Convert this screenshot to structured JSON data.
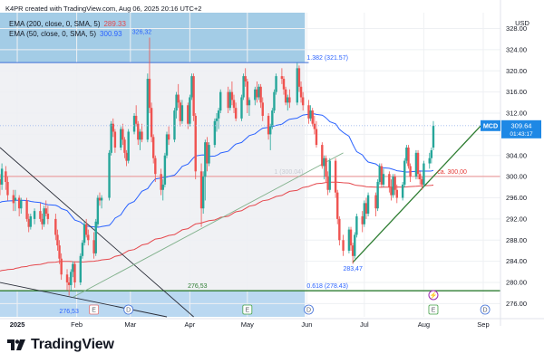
{
  "header": {
    "text": "K4PR created with TradingView.com, Aug 06, 2025 20:16 UTC+2"
  },
  "legend": [
    {
      "label": "EMA (200, close, 0, SMA, 5)",
      "value": "289.33",
      "color": "#e5484d"
    },
    {
      "label": "EMA (50, close, 0, SMA, 5)",
      "value": "300.93",
      "color": "#2962ff"
    }
  ],
  "currency": "USD",
  "brand": "TradingView",
  "price_tag": {
    "symbol": "MCD",
    "price": "309.64",
    "countdown": "01:43:17"
  },
  "colors": {
    "up": "#26a69a",
    "down": "#ef5350",
    "ema200": "#e5484d",
    "ema50": "#2962ff",
    "trend": "#2e7d32",
    "zone": "#5aa4d9",
    "price_tag": "#1e88e5"
  },
  "annotations": {
    "high_label": "326,32",
    "low_label_left": "276,53",
    "low_label_right": "283,47",
    "mid_label": "276,53",
    "fib_1382": "1.382 (321.57)",
    "fib_1": "1 (300.04)",
    "fib_0618": "0.618 (278.43)",
    "target_label": "ca. 300,00"
  },
  "event_markers": [
    {
      "kind": "earnings",
      "text": "E",
      "date": "2025-02-10"
    },
    {
      "kind": "dividend",
      "text": "D",
      "date": "2025-02-28"
    },
    {
      "kind": "earnings",
      "text": "E",
      "date": "2025-05-01"
    },
    {
      "kind": "dividend",
      "text": "D",
      "date": "2025-06-02"
    },
    {
      "kind": "earnings",
      "text": "E",
      "date": "2025-08-06"
    },
    {
      "kind": "dividend",
      "text": "D",
      "date": "2025-09-02"
    }
  ],
  "chart_data": {
    "type": "candlestick",
    "x_tick_labels": [
      "2025",
      "Feb",
      "Mar",
      "Apr",
      "May",
      "Jun",
      "Jul",
      "Aug",
      "Sep"
    ],
    "x_tick_dates": [
      "2025-01-01",
      "2025-02-01",
      "2025-03-01",
      "2025-04-01",
      "2025-05-01",
      "2025-06-01",
      "2025-07-01",
      "2025-08-01",
      "2025-09-01"
    ],
    "y_ticks": [
      "276.00",
      "280.00",
      "284.00",
      "288.00",
      "292.00",
      "296.00",
      "300.00",
      "304.00",
      "308.00",
      "312.00",
      "316.00",
      "320.00",
      "324.00",
      "328.00"
    ],
    "ylim": [
      273.5,
      331
    ],
    "current_price": 309.64,
    "horizontal_levels": [
      {
        "name": "fib 1.382",
        "value": 321.57
      },
      {
        "name": "fib 1",
        "value": 300.04
      },
      {
        "name": "ca. 300",
        "value": 300.0
      },
      {
        "name": "fib 0.618",
        "value": 278.43
      }
    ],
    "ohlc": [
      [
        "2024-12-23",
        299.5,
        300.5,
        296.5,
        298.5
      ],
      [
        "2024-12-24",
        298.5,
        302.5,
        297.5,
        301.5
      ],
      [
        "2024-12-26",
        301.0,
        302.0,
        297.5,
        299.0
      ],
      [
        "2024-12-27",
        299.0,
        300.0,
        295.5,
        296.5
      ],
      [
        "2024-12-30",
        296.5,
        297.5,
        293.5,
        295.0
      ],
      [
        "2024-12-31",
        295.5,
        297.5,
        293.5,
        296.0
      ],
      [
        "2025-01-02",
        296.0,
        296.5,
        292.5,
        294.0
      ],
      [
        "2025-01-03",
        294.0,
        296.0,
        293.0,
        295.5
      ],
      [
        "2025-01-06",
        295.5,
        296.0,
        291.5,
        292.0
      ],
      [
        "2025-01-07",
        292.0,
        293.0,
        289.5,
        290.5
      ],
      [
        "2025-01-08",
        290.5,
        293.0,
        290.0,
        292.5
      ],
      [
        "2025-01-10",
        292.0,
        294.0,
        291.0,
        293.5
      ],
      [
        "2025-01-13",
        293.5,
        295.0,
        291.5,
        292.0
      ],
      [
        "2025-01-14",
        292.0,
        293.0,
        290.0,
        291.0
      ],
      [
        "2025-01-15",
        291.0,
        294.5,
        290.5,
        294.0
      ],
      [
        "2025-01-16",
        294.0,
        295.5,
        292.5,
        293.0
      ],
      [
        "2025-01-17",
        293.0,
        294.5,
        291.0,
        292.0
      ],
      [
        "2025-01-21",
        292.0,
        293.0,
        288.0,
        289.0
      ],
      [
        "2025-01-22",
        289.0,
        290.0,
        286.0,
        287.0
      ],
      [
        "2025-01-23",
        287.0,
        288.0,
        283.5,
        284.5
      ],
      [
        "2025-01-24",
        284.5,
        285.5,
        280.5,
        281.5
      ],
      [
        "2025-01-27",
        281.5,
        282.5,
        278.5,
        280.0
      ],
      [
        "2025-01-28",
        280.0,
        281.0,
        277.5,
        279.5
      ],
      [
        "2025-01-29",
        279.5,
        282.5,
        278.5,
        282.0
      ],
      [
        "2025-01-30",
        282.0,
        284.0,
        281.0,
        283.5
      ],
      [
        "2025-01-31",
        283.5,
        284.0,
        279.0,
        280.0
      ],
      [
        "2025-02-03",
        280.0,
        285.5,
        279.5,
        285.0
      ],
      [
        "2025-02-04",
        285.0,
        288.0,
        284.5,
        287.5
      ],
      [
        "2025-02-05",
        287.5,
        291.5,
        287.0,
        291.0
      ],
      [
        "2025-02-06",
        291.0,
        292.0,
        288.5,
        289.0
      ],
      [
        "2025-02-07",
        289.0,
        290.0,
        287.0,
        288.0
      ],
      [
        "2025-02-10",
        288.0,
        289.5,
        284.5,
        285.5
      ],
      [
        "2025-02-11",
        285.5,
        292.0,
        285.0,
        291.5
      ],
      [
        "2025-02-12",
        291.0,
        296.5,
        290.5,
        296.0
      ],
      [
        "2025-02-13",
        296.0,
        297.0,
        294.5,
        295.5
      ],
      [
        "2025-02-14",
        295.5,
        296.5,
        294.0,
        296.0
      ],
      [
        "2025-02-18",
        296.0,
        305.0,
        295.5,
        304.5
      ],
      [
        "2025-02-19",
        304.5,
        310.5,
        304.0,
        310.0
      ],
      [
        "2025-02-20",
        310.0,
        311.0,
        307.5,
        308.5
      ],
      [
        "2025-02-21",
        308.5,
        309.0,
        304.5,
        305.5
      ],
      [
        "2025-02-24",
        305.5,
        309.5,
        305.0,
        309.0
      ],
      [
        "2025-02-25",
        309.0,
        310.0,
        306.0,
        307.0
      ],
      [
        "2025-02-26",
        307.0,
        307.5,
        303.5,
        304.5
      ],
      [
        "2025-02-27",
        304.5,
        305.0,
        302.0,
        303.0
      ],
      [
        "2025-02-28",
        303.0,
        309.0,
        302.5,
        308.5
      ],
      [
        "2025-03-03",
        308.5,
        312.0,
        308.0,
        311.5
      ],
      [
        "2025-03-04",
        311.5,
        313.5,
        309.5,
        310.0
      ],
      [
        "2025-03-05",
        310.0,
        310.5,
        306.0,
        307.0
      ],
      [
        "2025-03-06",
        307.0,
        309.0,
        305.0,
        308.5
      ],
      [
        "2025-03-07",
        308.5,
        310.0,
        306.5,
        307.0
      ],
      [
        "2025-03-10",
        307.0,
        319.5,
        306.5,
        318.5
      ],
      [
        "2025-03-11",
        318.5,
        326.3,
        312.0,
        313.0
      ],
      [
        "2025-03-12",
        313.0,
        314.0,
        306.5,
        307.5
      ],
      [
        "2025-03-13",
        307.5,
        308.0,
        302.5,
        303.5
      ],
      [
        "2025-03-14",
        303.5,
        304.0,
        299.0,
        300.5
      ],
      [
        "2025-03-17",
        300.5,
        301.5,
        296.5,
        297.5
      ],
      [
        "2025-03-18",
        297.5,
        299.5,
        295.5,
        298.5
      ],
      [
        "2025-03-19",
        298.5,
        304.5,
        298.0,
        304.0
      ],
      [
        "2025-03-20",
        304.0,
        308.5,
        303.5,
        308.0
      ],
      [
        "2025-03-21",
        308.0,
        309.5,
        306.0,
        307.0
      ],
      [
        "2025-03-24",
        307.0,
        313.0,
        306.5,
        312.5
      ],
      [
        "2025-03-25",
        312.5,
        316.0,
        311.0,
        315.5
      ],
      [
        "2025-03-26",
        315.5,
        317.5,
        313.0,
        314.0
      ],
      [
        "2025-03-27",
        314.0,
        314.5,
        309.5,
        310.5
      ],
      [
        "2025-03-28",
        310.5,
        314.5,
        310.0,
        313.5
      ],
      [
        "2025-03-31",
        313.5,
        314.0,
        309.0,
        310.0
      ],
      [
        "2025-04-01",
        310.0,
        315.5,
        309.5,
        315.0
      ],
      [
        "2025-04-02",
        315.0,
        319.5,
        314.5,
        319.0
      ],
      [
        "2025-04-03",
        319.0,
        319.5,
        310.5,
        311.5
      ],
      [
        "2025-04-04",
        311.5,
        312.0,
        299.5,
        301.0
      ],
      [
        "2025-04-07",
        301.0,
        302.5,
        290.5,
        294.0
      ],
      [
        "2025-04-08",
        294.0,
        301.0,
        293.0,
        300.0
      ],
      [
        "2025-04-09",
        300.0,
        307.0,
        295.5,
        306.5
      ],
      [
        "2025-04-10",
        306.5,
        307.5,
        301.0,
        302.5
      ],
      [
        "2025-04-11",
        302.5,
        306.5,
        302.0,
        306.0
      ],
      [
        "2025-04-14",
        306.0,
        311.0,
        305.5,
        310.5
      ],
      [
        "2025-04-15",
        310.5,
        312.0,
        308.5,
        311.0
      ],
      [
        "2025-04-16",
        311.0,
        313.0,
        309.0,
        312.5
      ],
      [
        "2025-04-17",
        312.5,
        316.5,
        312.0,
        316.0
      ],
      [
        "2025-04-21",
        316.0,
        317.0,
        312.0,
        313.0
      ],
      [
        "2025-04-22",
        313.0,
        316.5,
        312.5,
        316.0
      ],
      [
        "2025-04-23",
        316.0,
        318.0,
        313.5,
        314.5
      ],
      [
        "2025-04-24",
        314.5,
        315.5,
        312.0,
        313.0
      ],
      [
        "2025-04-25",
        313.0,
        314.0,
        310.5,
        311.0
      ],
      [
        "2025-04-28",
        311.0,
        315.5,
        310.5,
        315.0
      ],
      [
        "2025-04-29",
        315.0,
        319.5,
        314.5,
        319.0
      ],
      [
        "2025-04-30",
        319.0,
        320.5,
        317.0,
        318.0
      ],
      [
        "2025-05-01",
        318.0,
        318.5,
        312.0,
        313.5
      ],
      [
        "2025-05-02",
        313.5,
        315.0,
        311.5,
        314.5
      ],
      [
        "2025-05-05",
        314.5,
        317.0,
        313.5,
        316.5
      ],
      [
        "2025-05-06",
        316.5,
        318.0,
        314.0,
        315.0
      ],
      [
        "2025-05-07",
        315.0,
        317.5,
        314.5,
        317.0
      ],
      [
        "2025-05-08",
        317.0,
        317.5,
        313.0,
        314.0
      ],
      [
        "2025-05-09",
        314.0,
        315.0,
        310.5,
        311.5
      ],
      [
        "2025-05-12",
        311.5,
        312.0,
        307.0,
        308.0
      ],
      [
        "2025-05-13",
        308.0,
        310.0,
        305.0,
        309.5
      ],
      [
        "2025-05-14",
        309.5,
        313.0,
        309.0,
        312.5
      ],
      [
        "2025-05-15",
        312.5,
        316.5,
        312.0,
        316.0
      ],
      [
        "2025-05-16",
        316.0,
        319.5,
        315.5,
        319.0
      ],
      [
        "2025-05-19",
        319.0,
        320.5,
        317.5,
        318.5
      ],
      [
        "2025-05-20",
        318.5,
        319.0,
        315.5,
        316.5
      ],
      [
        "2025-05-21",
        316.5,
        317.0,
        313.5,
        314.0
      ],
      [
        "2025-05-22",
        314.0,
        315.5,
        312.5,
        315.0
      ],
      [
        "2025-05-23",
        315.0,
        316.5,
        313.0,
        314.0
      ],
      [
        "2025-05-27",
        314.0,
        321.5,
        313.5,
        320.5
      ],
      [
        "2025-05-28",
        320.5,
        321.0,
        316.0,
        317.0
      ],
      [
        "2025-05-29",
        317.0,
        318.0,
        314.0,
        315.0
      ],
      [
        "2025-05-30",
        315.0,
        316.0,
        312.5,
        313.5
      ],
      [
        "2025-06-02",
        313.5,
        314.5,
        310.0,
        311.0
      ],
      [
        "2025-06-03",
        311.0,
        313.5,
        310.5,
        312.5
      ],
      [
        "2025-06-04",
        312.5,
        313.0,
        309.5,
        310.0
      ],
      [
        "2025-06-05",
        310.0,
        311.5,
        308.0,
        309.0
      ],
      [
        "2025-06-06",
        309.0,
        310.5,
        305.5,
        306.0
      ],
      [
        "2025-06-09",
        306.0,
        306.5,
        301.5,
        302.0
      ],
      [
        "2025-06-10",
        302.0,
        304.0,
        299.5,
        303.5
      ],
      [
        "2025-06-11",
        303.5,
        304.0,
        299.0,
        300.0
      ],
      [
        "2025-06-12",
        300.0,
        301.0,
        296.5,
        297.5
      ],
      [
        "2025-06-13",
        297.5,
        303.5,
        297.0,
        303.0
      ],
      [
        "2025-06-16",
        303.0,
        303.5,
        296.0,
        297.0
      ],
      [
        "2025-06-17",
        297.0,
        297.5,
        291.0,
        292.0
      ],
      [
        "2025-06-18",
        292.0,
        292.5,
        287.0,
        288.0
      ],
      [
        "2025-06-20",
        288.0,
        289.0,
        285.0,
        286.0
      ],
      [
        "2025-06-23",
        286.0,
        290.5,
        285.5,
        290.0
      ],
      [
        "2025-06-24",
        290.0,
        290.5,
        286.0,
        287.0
      ],
      [
        "2025-06-25",
        287.0,
        287.5,
        283.5,
        285.0
      ],
      [
        "2025-06-26",
        285.0,
        289.5,
        284.5,
        289.0
      ],
      [
        "2025-06-27",
        289.0,
        293.0,
        288.5,
        292.5
      ],
      [
        "2025-06-30",
        292.5,
        293.5,
        289.5,
        291.0
      ],
      [
        "2025-07-01",
        291.0,
        295.5,
        290.5,
        295.0
      ],
      [
        "2025-07-02",
        295.0,
        296.0,
        292.0,
        293.0
      ],
      [
        "2025-07-03",
        293.0,
        297.0,
        292.5,
        296.5
      ],
      [
        "2025-07-07",
        296.5,
        297.0,
        292.5,
        294.0
      ],
      [
        "2025-07-08",
        294.0,
        299.5,
        293.5,
        299.0
      ],
      [
        "2025-07-09",
        299.0,
        302.5,
        298.5,
        302.0
      ],
      [
        "2025-07-10",
        302.0,
        302.5,
        298.0,
        298.5
      ],
      [
        "2025-07-11",
        298.5,
        301.5,
        298.0,
        300.5
      ],
      [
        "2025-07-14",
        300.5,
        301.0,
        297.0,
        298.0
      ],
      [
        "2025-07-15",
        298.0,
        299.5,
        295.5,
        296.5
      ],
      [
        "2025-07-16",
        296.5,
        300.5,
        296.0,
        300.0
      ],
      [
        "2025-07-17",
        300.0,
        300.5,
        296.5,
        297.5
      ],
      [
        "2025-07-18",
        297.5,
        298.5,
        295.0,
        296.0
      ],
      [
        "2025-07-21",
        296.0,
        299.0,
        295.5,
        298.5
      ],
      [
        "2025-07-22",
        298.5,
        303.5,
        298.0,
        303.0
      ],
      [
        "2025-07-23",
        303.0,
        306.0,
        302.5,
        305.5
      ],
      [
        "2025-07-24",
        305.5,
        306.0,
        301.5,
        302.0
      ],
      [
        "2025-07-25",
        302.0,
        302.5,
        299.0,
        300.0
      ],
      [
        "2025-07-28",
        300.0,
        305.0,
        299.5,
        304.5
      ],
      [
        "2025-07-29",
        304.5,
        305.0,
        299.5,
        300.5
      ],
      [
        "2025-07-30",
        300.5,
        301.0,
        298.5,
        299.5
      ],
      [
        "2025-07-31",
        299.5,
        300.0,
        297.5,
        298.5
      ],
      [
        "2025-08-01",
        298.5,
        303.0,
        298.0,
        302.5
      ],
      [
        "2025-08-04",
        302.5,
        304.5,
        301.5,
        303.5
      ],
      [
        "2025-08-05",
        303.5,
        305.5,
        302.5,
        305.0
      ],
      [
        "2025-08-06",
        305.5,
        310.5,
        305.0,
        309.64
      ]
    ]
  }
}
